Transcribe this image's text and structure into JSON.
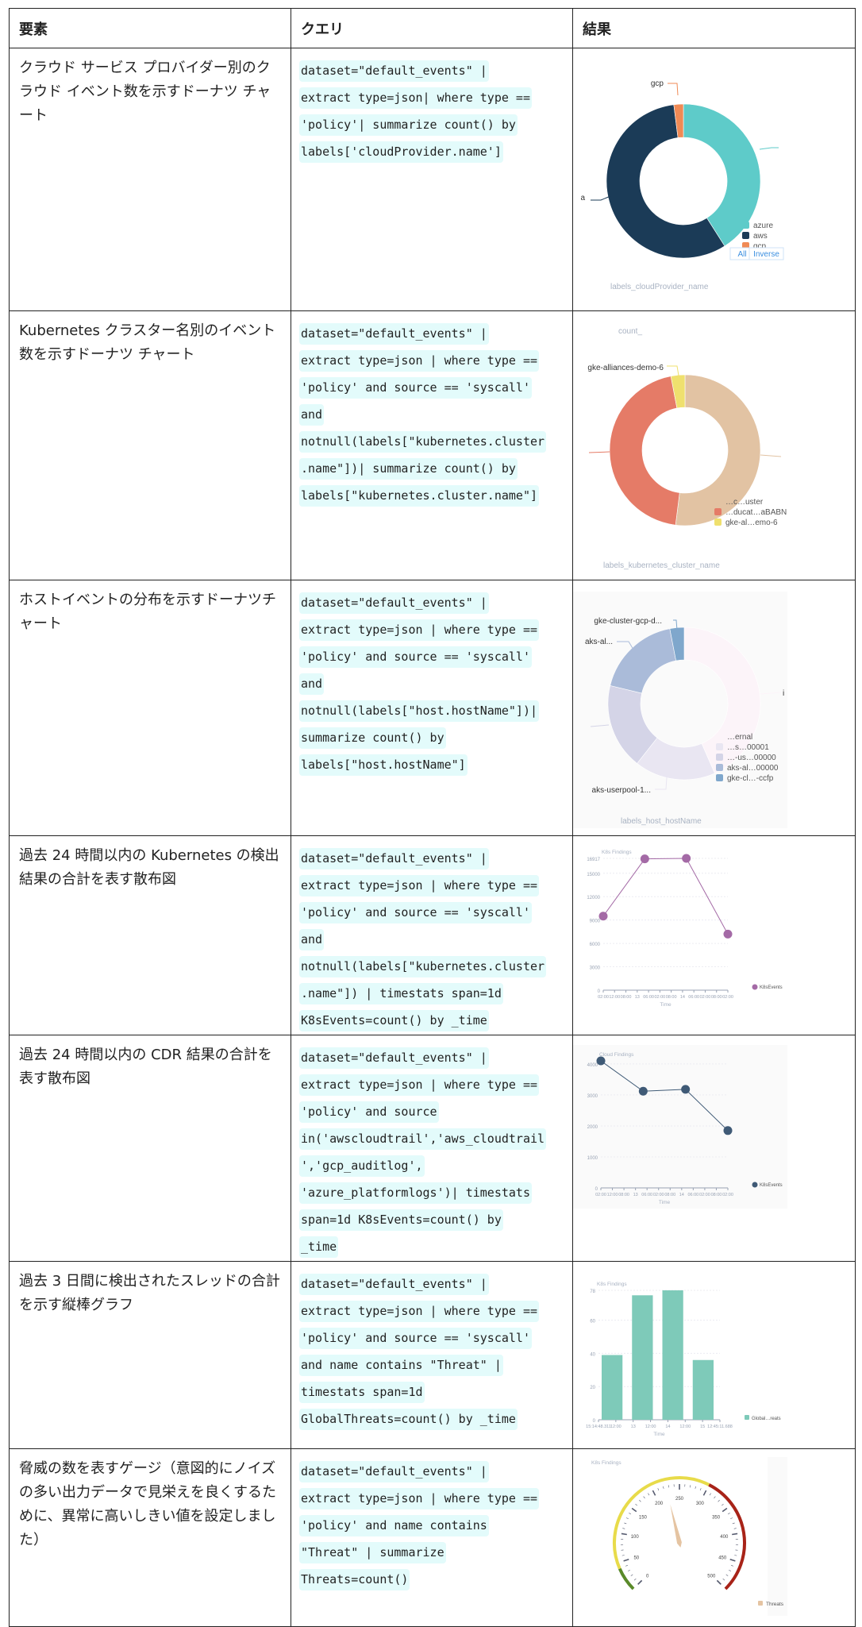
{
  "table": {
    "headers": [
      "要素",
      "クエリ",
      "結果"
    ],
    "rows": [
      {
        "element": "クラウド サービス プロバイダー別のクラウド イベント数を示すドーナツ チャート",
        "query": [
          "dataset=\"default_events\" |",
          "extract type=json| where type ==",
          "'policy'| summarize count() by",
          "labels['cloudProvider.name']"
        ]
      },
      {
        "element": "Kubernetes クラスター名別のイベント数を示すドーナツ チャート",
        "query": [
          "dataset=\"default_events\" |",
          "extract type=json | where type ==",
          "'policy' and source == 'syscall'",
          "and",
          "notnull(labels[\"kubernetes.cluster",
          ".name\"])| summarize count() by",
          "labels[\"kubernetes.cluster.name\"]"
        ]
      },
      {
        "element": "ホストイベントの分布を示すドーナツチャート",
        "query": [
          "dataset=\"default_events\" |",
          "extract type=json | where type ==",
          "'policy' and source == 'syscall'",
          "and",
          "notnull(labels[\"host.hostName\"])|",
          "summarize count() by",
          "labels[\"host.hostName\"]"
        ]
      },
      {
        "element": "過去 24 時間以内の Kubernetes の検出結果の合計を表す散布図",
        "query": [
          "dataset=\"default_events\" |",
          "extract type=json | where type ==",
          "'policy' and source == 'syscall'",
          "and",
          "notnull(labels[\"kubernetes.cluster",
          ".name\"]) | timestats span=1d",
          "K8sEvents=count() by _time"
        ]
      },
      {
        "element": "過去 24 時間以内の CDR 結果の合計を表す散布図",
        "query": [
          "dataset=\"default_events\" |",
          "extract type=json | where type ==",
          "'policy' and source",
          "in('awscloudtrail','aws_cloudtrail",
          "','gcp_auditlog',",
          "'azure_platformlogs')| timestats",
          "span=1d K8sEvents=count() by",
          "_time"
        ]
      },
      {
        "element": "過去 3 日間に検出されたスレッドの合計を示す縦棒グラフ",
        "query": [
          "dataset=\"default_events\" |",
          "extract type=json | where type ==",
          "'policy' and source == 'syscall'",
          "and name contains \"Threat\" |",
          "timestats span=1d",
          "GlobalThreats=count() by _time"
        ]
      },
      {
        "element": "脅威の数を表すゲージ（意図的にノイズの多い出力データで見栄えを良くするために、異常に高いしきい値を設定しました）",
        "query": [
          "dataset=\"default_events\" |",
          "extract type=json | where type ==",
          "'policy' and name contains",
          "\"Threat\" | summarize",
          "Threats=count()"
        ]
      }
    ]
  },
  "chart_data": [
    {
      "type": "pie",
      "donut": true,
      "axis_label": "labels_cloudProvider_name",
      "slices": [
        {
          "name": "azure",
          "value": 41,
          "color": "#5ecbc9"
        },
        {
          "name": "aws",
          "value": 57,
          "color": "#1b3b57"
        },
        {
          "name": "gcp",
          "value": 2,
          "color": "#f08a55"
        }
      ],
      "outer_labels": [
        "gcp",
        "a"
      ],
      "legend": [
        "azure",
        "aws",
        "gcp"
      ],
      "legend_buttons": [
        "All",
        "Inverse"
      ]
    },
    {
      "type": "pie",
      "donut": true,
      "title": "count_",
      "axis_label": "labels_kubernetes_cluster_name",
      "slices": [
        {
          "name": "…c…uster",
          "value": 52,
          "color": "#e2c3a3"
        },
        {
          "name": "…ducat…aBABN",
          "value": 45,
          "color": "#e57b67"
        },
        {
          "name": "gke-alliances-demo-6",
          "value": 3,
          "color": "#efe06e"
        }
      ],
      "outer_labels": [
        "gke-alliances-demo-6"
      ],
      "legend": [
        "…c…uster",
        "…ducat…aBABN",
        "gke-al…emo-6"
      ]
    },
    {
      "type": "pie",
      "donut": true,
      "axis_label": "labels_host_hostName",
      "slices": [
        {
          "name": "…ernal",
          "value": 43,
          "color": "#fcf4f9"
        },
        {
          "name": "…s…00001",
          "value": 17,
          "color": "#e9e6f2"
        },
        {
          "name": "…-us…00000",
          "value": 18,
          "color": "#d4d4e7"
        },
        {
          "name": "aks-al…00000",
          "value": 18,
          "color": "#aabbd9"
        },
        {
          "name": "gke-cl…-ccfp",
          "value": 3,
          "color": "#7fa7cc"
        }
      ],
      "outer_labels": [
        "gke-cluster-gcp-d...",
        "aks-al...",
        "aks-userpool-1...",
        "i"
      ],
      "legend": [
        "…ernal",
        "…s…00001",
        "…-us…00000",
        "aks-al…00000",
        "gke-cl…-ccfp"
      ]
    },
    {
      "type": "line",
      "title": "K8s Findings",
      "xlabel": "Time",
      "series": [
        {
          "name": "K8sEvents",
          "values": [
            9500,
            16850,
            16917,
            7200
          ],
          "color": "#a46aa6"
        }
      ],
      "x_ticks": [
        "02:00",
        "12:00",
        "08:00",
        "13",
        "06:00",
        "02:00",
        "08:00",
        "14",
        "06:00",
        "02:00",
        "08:00",
        "02:00"
      ],
      "y_ticks": [
        0,
        3000,
        6000,
        9000,
        12000,
        15000,
        16917
      ],
      "ylim": [
        0,
        16917
      ]
    },
    {
      "type": "line",
      "title": "Cloud Findings",
      "xlabel": "Time",
      "series": [
        {
          "name": "K8sEvents",
          "values": [
            4100,
            3120,
            3180,
            1850
          ],
          "color": "#3f5a76"
        }
      ],
      "x_ticks": [
        "02:00",
        "12:00",
        "08:00",
        "13",
        "06:00",
        "02:00",
        "08:00",
        "14",
        "06:00",
        "02:00",
        "08:00",
        "02:00"
      ],
      "y_ticks": [
        0,
        1000,
        2000,
        3000,
        4000
      ],
      "ylim": [
        0,
        4100
      ]
    },
    {
      "type": "bar",
      "title": "K8s Findings",
      "xlabel": "Time",
      "series": [
        {
          "name": "Global…reats",
          "values": [
            39,
            75,
            78,
            36
          ],
          "color": "#7ecab9"
        }
      ],
      "x_ticks": [
        "15:14:48.311",
        "12:00",
        "13",
        "12:00",
        "14",
        "12:00",
        "15",
        "12:45:11.688"
      ],
      "y_ticks": [
        0,
        20,
        40,
        60,
        78
      ],
      "ylim": [
        0,
        78
      ]
    },
    {
      "type": "gauge",
      "title": "K8s Findings",
      "min": 0,
      "max": 500,
      "value": 225,
      "ticks": [
        0,
        50,
        100,
        150,
        200,
        250,
        300,
        350,
        400,
        450,
        500
      ],
      "bands": [
        {
          "from": 0,
          "to": 40,
          "color": "#5a8a2a"
        },
        {
          "from": 40,
          "to": 300,
          "color": "#e8db4a"
        },
        {
          "from": 300,
          "to": 500,
          "color": "#a82318"
        }
      ],
      "needle_color": "#e5c4a2",
      "legend": [
        "Threats"
      ]
    }
  ]
}
